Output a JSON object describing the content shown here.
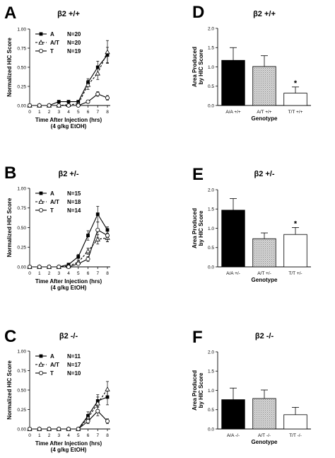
{
  "chart_data": [
    {
      "type": "line",
      "panel": "A",
      "title": "β2 +/+",
      "xlabel": "Time After Injection (hrs)",
      "xlabel2": "(4 g/kg EtOH)",
      "ylabel": "Normalized HIC Score",
      "x": [
        0,
        1,
        2,
        3,
        4,
        5,
        6,
        7,
        8
      ],
      "xlim": [
        0,
        8
      ],
      "ylim": [
        0,
        1.0
      ],
      "yticks": [
        "0.00",
        "0.25",
        "0.50",
        "0.75",
        "1.00"
      ],
      "legend": "top-left",
      "series": [
        {
          "label": "A",
          "n": "N=20",
          "marker": "filled-square",
          "dash": "solid",
          "values": [
            0,
            0,
            0,
            0.05,
            0.05,
            0.05,
            0.3,
            0.5,
            0.66
          ],
          "err": [
            0,
            0,
            0,
            0,
            0,
            0.01,
            0.05,
            0.08,
            0.1
          ]
        },
        {
          "label": "A/T",
          "n": "N=20",
          "marker": "open-triangle",
          "dash": "dashed",
          "values": [
            0,
            0,
            0,
            0,
            0.01,
            0.02,
            0.27,
            0.42,
            0.7
          ],
          "err": [
            0,
            0,
            0,
            0,
            0.01,
            0.01,
            0.06,
            0.08,
            0.15
          ]
        },
        {
          "label": "T",
          "n": "N=19",
          "marker": "open-circle",
          "dash": "solid",
          "values": [
            0,
            0,
            0,
            0,
            0,
            0,
            0.05,
            0.15,
            0.1
          ],
          "err": [
            0,
            0,
            0,
            0,
            0,
            0,
            0.02,
            0.03,
            0.03
          ]
        }
      ]
    },
    {
      "type": "bar",
      "panel": "D",
      "title": "β2 +/+",
      "xlabel": "Genotype",
      "ylabel": "Area Produced by HIC Score",
      "categories": [
        "A/A +/+",
        "A/T +/+",
        "T/T +/+"
      ],
      "values": [
        1.17,
        1.01,
        0.32
      ],
      "err": [
        0.33,
        0.28,
        0.16
      ],
      "significance": [
        "",
        "",
        "*"
      ],
      "ylim": [
        0,
        2.0
      ],
      "yticks": [
        "0.0",
        "0.5",
        "1.0",
        "1.5",
        "2.0"
      ]
    },
    {
      "type": "line",
      "panel": "B",
      "title": "β2 +/-",
      "xlabel": "Time After Injection (hrs)",
      "xlabel2": "(4 g/kg EtOH)",
      "ylabel": "Normalized HIC Score",
      "x": [
        0,
        1,
        2,
        3,
        4,
        5,
        6,
        7,
        8
      ],
      "xlim": [
        0,
        8
      ],
      "ylim": [
        0,
        1.0
      ],
      "yticks": [
        "0.00",
        "0.25",
        "0.50",
        "0.75",
        "1.00"
      ],
      "legend": "top-left",
      "series": [
        {
          "label": "A",
          "n": "N=15",
          "marker": "filled-square",
          "dash": "solid",
          "values": [
            0,
            0,
            0,
            0,
            0.03,
            0.13,
            0.4,
            0.67,
            0.47
          ],
          "err": [
            0,
            0,
            0,
            0,
            0.01,
            0.03,
            0.06,
            0.1,
            0.04
          ]
        },
        {
          "label": "A/T",
          "n": "N=18",
          "marker": "open-triangle",
          "dash": "dashed",
          "values": [
            0,
            0,
            0,
            0,
            0.01,
            0.06,
            0.2,
            0.35,
            0.37
          ],
          "err": [
            0,
            0,
            0,
            0,
            0.01,
            0.02,
            0.04,
            0.06,
            0.05
          ]
        },
        {
          "label": "T",
          "n": "N=14",
          "marker": "open-circle",
          "dash": "solid",
          "values": [
            0,
            0,
            0,
            0,
            0,
            0.04,
            0.1,
            0.47,
            0.4
          ],
          "err": [
            0,
            0,
            0,
            0,
            0,
            0.01,
            0.03,
            0.1,
            0.08
          ]
        }
      ]
    },
    {
      "type": "bar",
      "panel": "E",
      "title": "β2 +/-",
      "xlabel": "Genotype",
      "ylabel": "Area Produced by HIC Score",
      "categories": [
        "A/A +/-",
        "A/T +/-",
        "T/T +/-"
      ],
      "values": [
        1.47,
        0.73,
        0.84
      ],
      "err": [
        0.3,
        0.15,
        0.18
      ],
      "significance": [
        "",
        "",
        "*"
      ],
      "ylim": [
        0,
        2.0
      ],
      "yticks": [
        "0.0",
        "0.5",
        "1.0",
        "1.5",
        "2.0"
      ]
    },
    {
      "type": "line",
      "panel": "C",
      "title": "β2 -/-",
      "xlabel": "Time After Injection (hrs)",
      "xlabel2": "(4 g/kg EtOH)",
      "ylabel": "Normalized HIC Score",
      "x": [
        0,
        1,
        2,
        3,
        4,
        5,
        6,
        7,
        8
      ],
      "xlim": [
        0,
        8
      ],
      "ylim": [
        0,
        1.0
      ],
      "yticks": [
        "0.00",
        "0.25",
        "0.50",
        "0.75",
        "1.00"
      ],
      "legend": "top-left",
      "series": [
        {
          "label": "A",
          "n": "N=11",
          "marker": "filled-square",
          "dash": "solid",
          "values": [
            0,
            0,
            0,
            0,
            0,
            0,
            0.17,
            0.36,
            0.41
          ],
          "err": [
            0,
            0,
            0,
            0,
            0,
            0,
            0.05,
            0.08,
            0.1
          ]
        },
        {
          "label": "A/T",
          "n": "N=17",
          "marker": "open-triangle",
          "dash": "dashed",
          "values": [
            0,
            0,
            0,
            0,
            0,
            0,
            0.14,
            0.33,
            0.51
          ],
          "err": [
            0,
            0,
            0,
            0,
            0,
            0,
            0.04,
            0.08,
            0.1
          ]
        },
        {
          "label": "T",
          "n": "N=10",
          "marker": "open-circle",
          "dash": "solid",
          "values": [
            0,
            0,
            0,
            0,
            0,
            0,
            0.1,
            0.23,
            0.1
          ],
          "err": [
            0,
            0,
            0,
            0,
            0,
            0,
            0.03,
            0.06,
            0.03
          ]
        }
      ]
    },
    {
      "type": "bar",
      "panel": "F",
      "title": "β2 -/-",
      "xlabel": "Genotype",
      "ylabel": "Area Produced by HIC Score",
      "categories": [
        "A/A -/-",
        "A/T -/-",
        "T/T -/-"
      ],
      "values": [
        0.76,
        0.79,
        0.37
      ],
      "err": [
        0.3,
        0.22,
        0.19
      ],
      "significance": [
        "",
        "",
        ""
      ],
      "ylim": [
        0,
        2.0
      ],
      "yticks": [
        "0.0",
        "0.5",
        "1.0",
        "1.5",
        "2.0"
      ]
    }
  ]
}
